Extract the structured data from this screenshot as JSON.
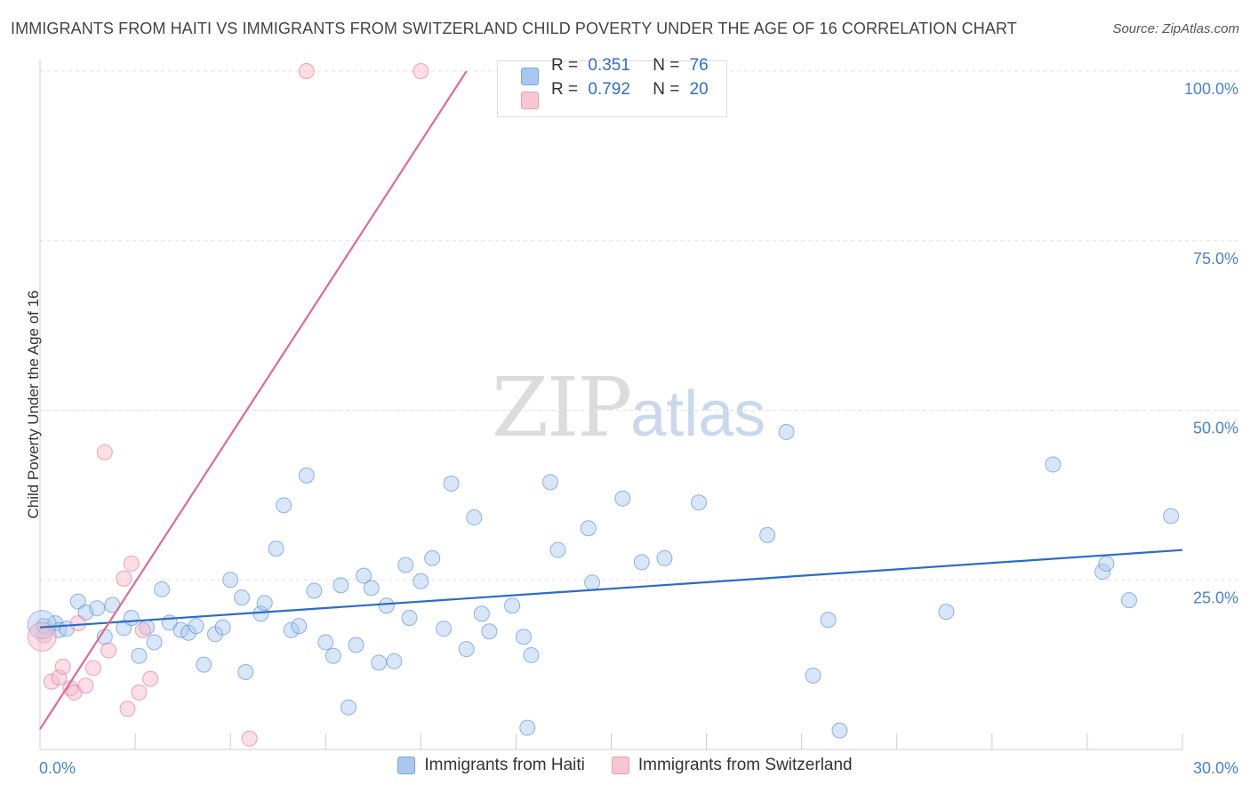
{
  "title": "IMMIGRANTS FROM HAITI VS IMMIGRANTS FROM SWITZERLAND CHILD POVERTY UNDER THE AGE OF 16 CORRELATION CHART",
  "source": "Source: ZipAtlas.com",
  "watermark": {
    "zip": "ZIP",
    "atlas": "atlas"
  },
  "legend_box": {
    "rows": [
      {
        "r_label": "R =",
        "r_value": "0.351",
        "n_label": "N =",
        "n_value": "76",
        "color": "#a8c8f0"
      },
      {
        "r_label": "R =",
        "r_value": "0.792",
        "n_label": "N =",
        "n_value": "20",
        "color": "#f7b6c8"
      }
    ]
  },
  "chart_data": {
    "type": "scatter",
    "title": "IMMIGRANTS FROM HAITI VS IMMIGRANTS FROM SWITZERLAND CHILD POVERTY UNDER THE AGE OF 16 CORRELATION CHART",
    "xlabel": "",
    "ylabel": "Child Poverty Under the Age of 16",
    "xlim": [
      0,
      30
    ],
    "ylim": [
      0,
      100
    ],
    "x_tick_labels": [
      {
        "value": 0,
        "label": "0.0%"
      },
      {
        "value": 30,
        "label": "30.0%"
      }
    ],
    "y_tick_labels": [
      {
        "value": 25,
        "label": "25.0%"
      },
      {
        "value": 50,
        "label": "50.0%"
      },
      {
        "value": 75,
        "label": "75.0%"
      },
      {
        "value": 100,
        "label": "100.0%"
      }
    ],
    "grid": true,
    "legend_position": "bottom",
    "series": [
      {
        "name": "Immigrants from Haiti",
        "color": "#4a86d6",
        "fill": "#a8c8f0",
        "trend": [
          [
            0,
            18.0
          ],
          [
            30,
            29.4
          ]
        ],
        "points": [
          [
            0.1,
            18.2
          ],
          [
            0.4,
            18.6
          ],
          [
            0.5,
            17.6
          ],
          [
            0.7,
            17.8
          ],
          [
            1.0,
            21.8
          ],
          [
            1.2,
            20.2
          ],
          [
            1.5,
            20.8
          ],
          [
            1.7,
            16.6
          ],
          [
            1.9,
            21.3
          ],
          [
            2.2,
            17.9
          ],
          [
            2.4,
            19.4
          ],
          [
            2.6,
            13.8
          ],
          [
            2.8,
            18.0
          ],
          [
            3.0,
            15.8
          ],
          [
            3.2,
            23.6
          ],
          [
            3.4,
            18.7
          ],
          [
            3.7,
            17.6
          ],
          [
            3.9,
            17.2
          ],
          [
            4.1,
            18.2
          ],
          [
            4.3,
            12.5
          ],
          [
            4.6,
            17.0
          ],
          [
            4.8,
            18.0
          ],
          [
            5.0,
            25.0
          ],
          [
            5.3,
            22.4
          ],
          [
            5.4,
            11.4
          ],
          [
            5.8,
            20.0
          ],
          [
            5.9,
            21.6
          ],
          [
            6.2,
            29.6
          ],
          [
            6.4,
            36.0
          ],
          [
            6.6,
            17.6
          ],
          [
            6.8,
            18.2
          ],
          [
            7.0,
            40.4
          ],
          [
            7.2,
            23.4
          ],
          [
            7.5,
            15.8
          ],
          [
            7.7,
            13.8
          ],
          [
            7.9,
            24.2
          ],
          [
            8.1,
            6.2
          ],
          [
            8.3,
            15.4
          ],
          [
            8.5,
            25.6
          ],
          [
            8.7,
            23.8
          ],
          [
            8.9,
            12.8
          ],
          [
            9.1,
            21.2
          ],
          [
            9.3,
            13.0
          ],
          [
            9.6,
            27.2
          ],
          [
            9.7,
            19.4
          ],
          [
            10.0,
            24.8
          ],
          [
            10.3,
            28.2
          ],
          [
            10.8,
            39.2
          ],
          [
            10.6,
            17.8
          ],
          [
            11.2,
            14.8
          ],
          [
            11.4,
            34.2
          ],
          [
            11.6,
            20.0
          ],
          [
            11.8,
            17.4
          ],
          [
            12.4,
            21.2
          ],
          [
            12.7,
            16.6
          ],
          [
            12.8,
            3.2
          ],
          [
            12.9,
            13.9
          ],
          [
            13.4,
            39.4
          ],
          [
            13.6,
            29.4
          ],
          [
            14.4,
            32.6
          ],
          [
            14.5,
            24.6
          ],
          [
            15.3,
            37.0
          ],
          [
            15.8,
            27.6
          ],
          [
            16.4,
            28.2
          ],
          [
            17.3,
            36.4
          ],
          [
            19.1,
            31.6
          ],
          [
            19.6,
            46.8
          ],
          [
            20.3,
            10.9
          ],
          [
            20.7,
            19.1
          ],
          [
            21.0,
            2.8
          ],
          [
            23.8,
            20.3
          ],
          [
            26.6,
            42.0
          ],
          [
            27.9,
            26.2
          ],
          [
            28.0,
            27.4
          ],
          [
            28.6,
            22.0
          ],
          [
            29.7,
            34.4
          ]
        ]
      },
      {
        "name": "Immigrants from Switzerland",
        "color": "#e06a93",
        "fill": "#f7b6c8",
        "trend": [
          [
            0,
            3.0
          ],
          [
            11.2,
            100
          ]
        ],
        "points": [
          [
            0.1,
            16.8
          ],
          [
            0.3,
            10.0
          ],
          [
            0.5,
            10.6
          ],
          [
            0.6,
            12.2
          ],
          [
            0.8,
            9.0
          ],
          [
            0.9,
            8.4
          ],
          [
            1.0,
            18.6
          ],
          [
            1.2,
            9.4
          ],
          [
            1.4,
            12.0
          ],
          [
            1.7,
            43.8
          ],
          [
            1.8,
            14.6
          ],
          [
            2.2,
            25.2
          ],
          [
            2.3,
            6.0
          ],
          [
            2.4,
            27.4
          ],
          [
            2.6,
            8.4
          ],
          [
            2.7,
            17.6
          ],
          [
            2.9,
            10.4
          ],
          [
            5.5,
            1.6
          ],
          [
            7.0,
            100.0
          ],
          [
            10.0,
            100.0
          ]
        ]
      }
    ]
  }
}
